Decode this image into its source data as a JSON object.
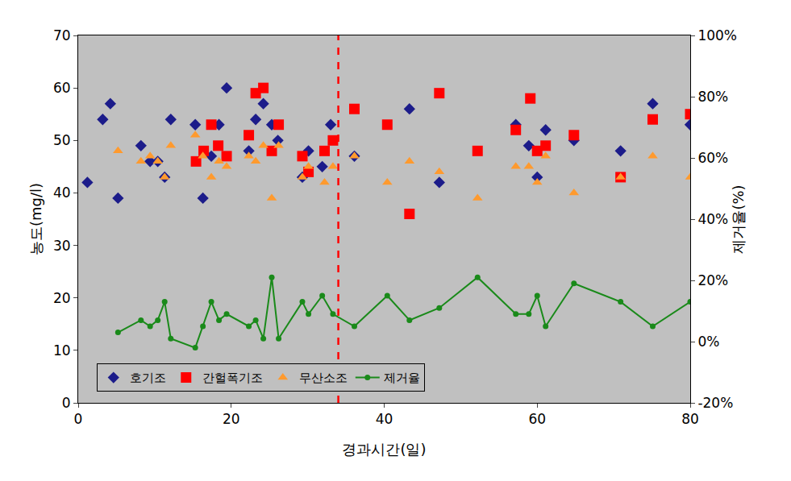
{
  "chart_data": {
    "type": "scatter",
    "x_label": "경과시간(일)",
    "y_label": "농도(mg/l)",
    "y2_label": "제거율(%)",
    "xlim": [
      0,
      80
    ],
    "xticks": [
      0,
      20,
      40,
      60,
      80
    ],
    "ylim": [
      0,
      70
    ],
    "yticks": [
      0,
      10,
      20,
      30,
      40,
      50,
      60,
      70
    ],
    "y2lim": [
      -20,
      100
    ],
    "y2ticks": [
      {
        "value": -20,
        "label": "-20%"
      },
      {
        "value": 0,
        "label": "0%"
      },
      {
        "value": 20,
        "label": "20%"
      },
      {
        "value": 40,
        "label": "40%"
      },
      {
        "value": 60,
        "label": "60%"
      },
      {
        "value": 80,
        "label": "80%"
      },
      {
        "value": 100,
        "label": "100%"
      }
    ],
    "grid": false,
    "legend": "lower left",
    "vline": {
      "x": 34,
      "color": "#ff0000",
      "line_style": "dash"
    },
    "series": [
      {
        "name": "호기조",
        "type": "scatter",
        "marker": "diamond",
        "color": "#1c1c8a",
        "x": [
          1.2,
          3.2,
          4.2,
          5.2,
          8.2,
          9.4,
          10.4,
          11.3,
          12.1,
          15.3,
          16.3,
          17.4,
          18.4,
          19.4,
          22.3,
          23.2,
          24.2,
          25.3,
          26.1,
          29.3,
          30.1,
          31.9,
          33.0,
          36.1,
          43.3,
          47.2,
          57.2,
          58.9,
          60.0,
          61.1,
          64.8,
          70.9,
          75.1,
          80.0
        ],
        "values": [
          42,
          54,
          57,
          39,
          49,
          46,
          46,
          43,
          54,
          53,
          39,
          47,
          53,
          60,
          48,
          54,
          57,
          53,
          50,
          43,
          48,
          45,
          53,
          47,
          56,
          42,
          53,
          49,
          43,
          52,
          50,
          48,
          57,
          53
        ]
      },
      {
        "name": "간헐폭기조",
        "type": "scatter",
        "marker": "square",
        "color": "#ff0000",
        "x": [
          15.4,
          16.4,
          17.4,
          18.3,
          19.4,
          22.3,
          23.2,
          24.2,
          25.3,
          26.2,
          29.3,
          30.1,
          32.2,
          33.3,
          36.1,
          40.4,
          43.3,
          47.2,
          52.2,
          57.2,
          59.1,
          60.0,
          61.1,
          64.8,
          70.9,
          75.1,
          80.0
        ],
        "values": [
          46,
          48,
          53,
          49,
          47,
          51,
          59,
          60,
          48,
          53,
          47,
          44,
          48,
          50,
          56,
          53,
          36,
          59,
          48,
          52,
          58,
          48,
          49,
          51,
          43,
          54,
          55
        ]
      },
      {
        "name": "무산소조",
        "type": "scatter",
        "marker": "triangle-up",
        "color": "#ff9a2e",
        "x": [
          5.2,
          8.2,
          9.4,
          10.4,
          11.3,
          12.1,
          15.3,
          16.3,
          17.4,
          18.4,
          19.4,
          22.3,
          23.2,
          24.2,
          25.3,
          26.2,
          29.3,
          30.1,
          32.2,
          33.3,
          36.1,
          40.4,
          43.3,
          47.2,
          52.2,
          57.2,
          58.9,
          60.0,
          61.1,
          64.8,
          70.9,
          75.1,
          80.0
        ],
        "values": [
          48,
          46,
          47,
          46,
          43,
          49,
          51,
          47,
          43,
          46,
          45,
          47,
          46,
          49,
          39,
          49,
          43,
          45,
          42,
          45,
          47,
          42,
          46,
          44,
          39,
          45,
          45,
          42,
          47,
          40,
          43,
          47,
          43
        ]
      },
      {
        "name": "제거율",
        "type": "line",
        "marker": "circle",
        "line_style": "solid",
        "color": "#1a8a1a",
        "axis": "y2",
        "x": [
          5.2,
          8.2,
          9.4,
          10.4,
          11.3,
          12.1,
          15.3,
          16.3,
          17.4,
          18.4,
          19.4,
          22.3,
          23.2,
          24.2,
          25.3,
          26.2,
          29.3,
          30.1,
          31.9,
          33.3,
          36.1,
          40.4,
          43.3,
          47.2,
          52.2,
          57.2,
          58.9,
          60.0,
          61.1,
          64.8,
          70.9,
          75.1,
          80.0
        ],
        "values": [
          3,
          7,
          5,
          7,
          13,
          1,
          -2,
          5,
          13,
          7,
          9,
          5,
          7,
          1,
          21,
          1,
          13,
          9,
          15,
          9,
          5,
          15,
          7,
          11,
          21,
          9,
          9,
          15,
          5,
          19,
          13,
          5,
          13
        ]
      }
    ]
  }
}
